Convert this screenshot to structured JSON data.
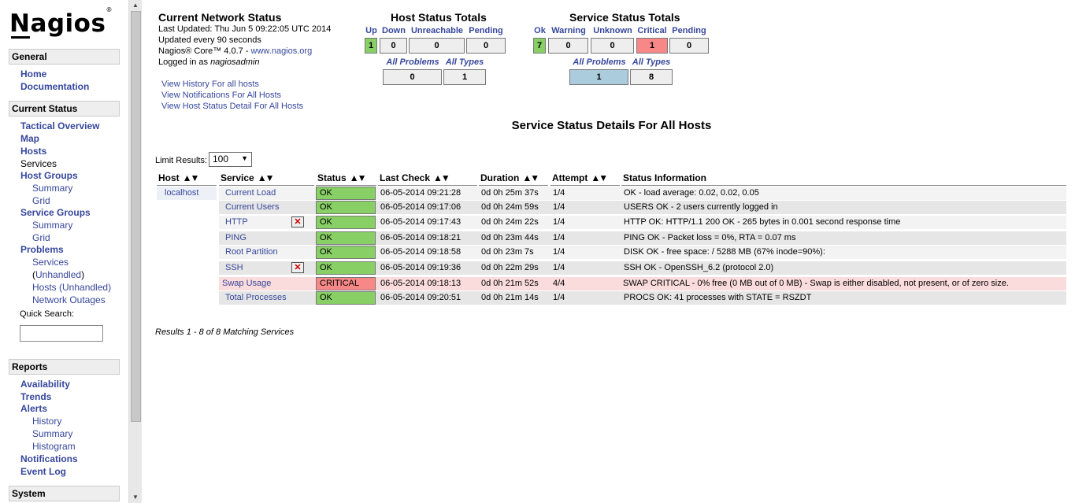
{
  "logo": {
    "text": "Nagios",
    "mark": "®"
  },
  "sidebar": {
    "general": {
      "title": "General",
      "links": [
        "Home",
        "Documentation"
      ]
    },
    "current_status": {
      "title": "Current Status",
      "tactical": "Tactical Overview",
      "map": "Map",
      "hosts": "Hosts",
      "services": "Services",
      "host_groups": "Host Groups",
      "hg_summary": "Summary",
      "hg_grid": "Grid",
      "service_groups": "Service Groups",
      "sg_summary": "Summary",
      "sg_grid": "Grid",
      "problems": "Problems",
      "pr_services": "Services",
      "pr_unhandled_open": "(",
      "pr_unhandled": "Unhandled",
      "pr_unhandled_close": ")",
      "pr_hosts": "Hosts",
      "pr_hosts_unhandled": " (Unhandled)",
      "pr_network_outages": "Network Outages",
      "quick_search_label": "Quick Search:"
    },
    "reports": {
      "title": "Reports",
      "availability": "Availability",
      "trends": "Trends",
      "alerts": "Alerts",
      "history": "History",
      "summary": "Summary",
      "histogram": "Histogram",
      "notifications": "Notifications",
      "event_log": "Event Log"
    },
    "system": {
      "title": "System"
    }
  },
  "info": {
    "title": "Current Network Status",
    "last_updated": "Last Updated: Thu Jun 5 09:22:05 UTC 2014",
    "update_interval": "Updated every 90 seconds",
    "version_prefix": "Nagios® Core™ 4.0.7 - ",
    "version_link": "www.nagios.org",
    "logged_in_prefix": "Logged in as ",
    "logged_in_user": "nagiosadmin",
    "links": [
      "View History For all hosts",
      "View Notifications For All Hosts",
      "View Host Status Detail For All Hosts"
    ]
  },
  "host_totals": {
    "title": "Host Status Totals",
    "labels": {
      "up": "Up",
      "down": "Down",
      "unreachable": "Unreachable",
      "pending": "Pending"
    },
    "values": {
      "up": "1",
      "down": "0",
      "unreachable": "0",
      "pending": "0"
    },
    "all_problems_label": "All Problems",
    "all_types_label": "All Types",
    "all_problems": "0",
    "all_types": "1"
  },
  "service_totals": {
    "title": "Service Status Totals",
    "labels": {
      "ok": "Ok",
      "warning": "Warning",
      "unknown": "Unknown",
      "critical": "Critical",
      "pending": "Pending"
    },
    "values": {
      "ok": "7",
      "warning": "0",
      "unknown": "0",
      "critical": "1",
      "pending": "0"
    },
    "all_problems_label": "All Problems",
    "all_types_label": "All Types",
    "all_problems": "1",
    "all_types": "8"
  },
  "page_title": "Service Status Details For All Hosts",
  "limit": {
    "label": "Limit Results:",
    "value": "100"
  },
  "table": {
    "headers": {
      "host": "Host",
      "service": "Service",
      "status": "Status",
      "last_check": "Last Check",
      "duration": "Duration",
      "attempt": "Attempt",
      "info": "Status Information"
    },
    "rows": [
      {
        "host": "localhost",
        "service": "Current Load",
        "status": "OK",
        "last_check": "06-05-2014 09:21:28",
        "duration": "0d 0h 25m 37s",
        "attempt": "1/4",
        "info": "OK - load average: 0.02, 0.02, 0.05"
      },
      {
        "host": "",
        "service": "Current Users",
        "status": "OK",
        "last_check": "06-05-2014 09:17:06",
        "duration": "0d 0h 24m 59s",
        "attempt": "1/4",
        "info": "USERS OK - 2 users currently logged in"
      },
      {
        "host": "",
        "service": "HTTP",
        "status": "OK",
        "last_check": "06-05-2014 09:17:43",
        "duration": "0d 0h 24m 22s",
        "attempt": "1/4",
        "info": "HTTP OK: HTTP/1.1 200 OK - 265 bytes in 0.001 second response time"
      },
      {
        "host": "",
        "service": "PING",
        "status": "OK",
        "last_check": "06-05-2014 09:18:21",
        "duration": "0d 0h 23m 44s",
        "attempt": "1/4",
        "info": "PING OK - Packet loss = 0%, RTA = 0.07 ms"
      },
      {
        "host": "",
        "service": "Root Partition",
        "status": "OK",
        "last_check": "06-05-2014 09:18:58",
        "duration": "0d 0h 23m 7s",
        "attempt": "1/4",
        "info": "DISK OK - free space: / 5288 MB (67% inode=90%):"
      },
      {
        "host": "",
        "service": "SSH",
        "status": "OK",
        "last_check": "06-05-2014 09:19:36",
        "duration": "0d 0h 22m 29s",
        "attempt": "1/4",
        "info": "SSH OK - OpenSSH_6.2 (protocol 2.0)"
      },
      {
        "host": "",
        "service": "Swap Usage",
        "status": "CRITICAL",
        "last_check": "06-05-2014 09:18:13",
        "duration": "0d 0h 21m 52s",
        "attempt": "4/4",
        "info": "SWAP CRITICAL - 0% free (0 MB out of 0 MB) - Swap is either disabled, not present, or of zero size."
      },
      {
        "host": "",
        "service": "Total Processes",
        "status": "OK",
        "last_check": "06-05-2014 09:20:51",
        "duration": "0d 0h 21m 14s",
        "attempt": "1/4",
        "info": "PROCS OK: 41 processes with STATE = RSZDT"
      }
    ],
    "results": "Results 1 - 8 of 8 Matching Services"
  }
}
